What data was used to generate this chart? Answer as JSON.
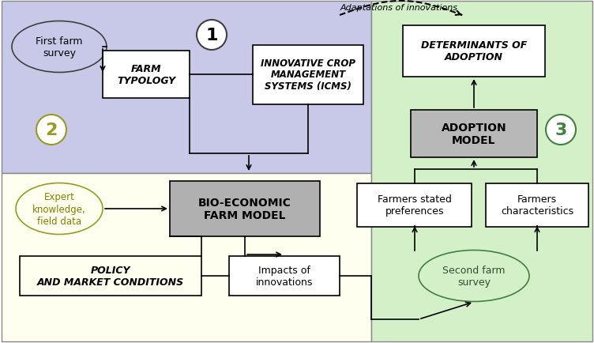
{
  "bg_color": "#ffffff",
  "zone1_color": "#c8c8e8",
  "zone2_color": "#fffff0",
  "zone3_color": "#d4f0c8",
  "box_white": "#ffffff",
  "box_gray": "#b0b0b0",
  "ellipse_stroke": "#404040",
  "text_dark": "#000000",
  "arrow_color": "#000000",
  "dashed_arrow_color": "#333333",
  "circle1_color": "#c8c8e8",
  "circle2_color": "#fffff0",
  "circle3_color": "#d4f0c8",
  "adaptations_text": "Adaptations of innovations",
  "label1": "1",
  "label2": "2",
  "label3": "3",
  "first_farm": "First farm\nsurvey",
  "farm_typology": "FARM\nTYPOLOGY",
  "icms": "INNOVATIVE CROP\nMANAGEMENT\nSYSTEMS (ICMS)",
  "bio_economic": "BIO-ECONOMIC\nFARM MODEL",
  "expert": "Expert\nknowledge,\nfield data",
  "policy": "POLICY\nAND MARKET CONDITIONS",
  "impacts": "Impacts of\ninnovations",
  "det_adoption": "DETERMINANTS OF\nADOPTION",
  "adoption_model": "ADOPTION\nMODEL",
  "farmers_stated": "Farmers stated\npreferences",
  "farmers_char": "Farmers\ncharacteristics",
  "second_farm": "Second farm\nsurvey"
}
